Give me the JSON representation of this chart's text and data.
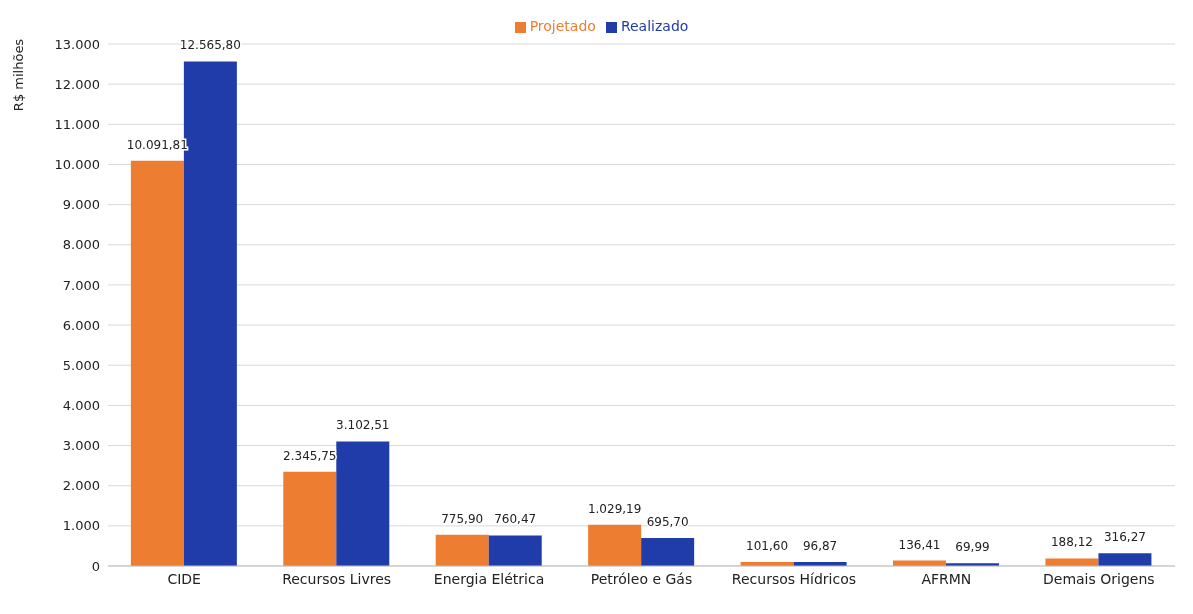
{
  "chart_data": {
    "type": "bar",
    "ylabel": "R$ milhões",
    "categories": [
      "CIDE",
      "Recursos Livres",
      "Energia Elétrica",
      "Petróleo e Gás",
      "Recursos Hídricos",
      "AFRMN",
      "Demais Origens"
    ],
    "series": [
      {
        "name": "Projetado",
        "color": "#ed7d31",
        "values": [
          10091.81,
          2345.75,
          775.9,
          1029.19,
          101.6,
          136.41,
          188.12
        ],
        "value_labels": [
          "10.091,81",
          "2.345,75",
          "775,90",
          "1.029,19",
          "101,60",
          "136,41",
          "188,12"
        ]
      },
      {
        "name": "Realizado",
        "color": "#203ca8",
        "values": [
          12565.8,
          3102.51,
          760.47,
          695.7,
          96.87,
          69.99,
          316.27
        ],
        "value_labels": [
          "12.565,80",
          "3.102,51",
          "760,47",
          "695,70",
          "96,87",
          "69,99",
          "316,27"
        ]
      }
    ],
    "ylim": [
      0,
      13000
    ],
    "yticks": [
      {
        "value": 0,
        "label": "0"
      },
      {
        "value": 1000,
        "label": "1.000"
      },
      {
        "value": 2000,
        "label": "2.000"
      },
      {
        "value": 3000,
        "label": "3.000"
      },
      {
        "value": 4000,
        "label": "4.000"
      },
      {
        "value": 5000,
        "label": "5.000"
      },
      {
        "value": 6000,
        "label": "6.000"
      },
      {
        "value": 7000,
        "label": "7.000"
      },
      {
        "value": 8000,
        "label": "8.000"
      },
      {
        "value": 9000,
        "label": "9.000"
      },
      {
        "value": 10000,
        "label": "10.000"
      },
      {
        "value": 11000,
        "label": "11.000"
      },
      {
        "value": 12000,
        "label": "12.000"
      },
      {
        "value": 13000,
        "label": "13.000"
      }
    ],
    "grid": "y",
    "legend": "top"
  }
}
